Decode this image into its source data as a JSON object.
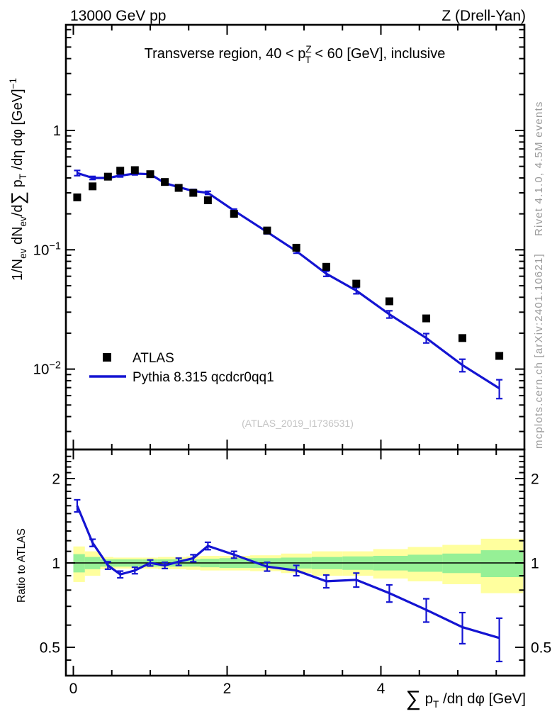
{
  "header": {
    "left": "13000 GeV pp",
    "right": "Z (Drell-Yan)"
  },
  "watermark": "(ATLAS_2019_I1736531)",
  "side_notes": {
    "top": "Rivet 4.1.0,  4.5M events",
    "bottom": "mcplots.cern.ch [arXiv:2401.10621]"
  },
  "colors": {
    "mc_blue": "#1414d2",
    "data_black": "#000000",
    "band_inner_green": "#96f096",
    "band_outer_yellow": "#ffff9e",
    "note_gray": "#9a9a9a",
    "watermark_gray": "#c4c4c4",
    "frame_black": "#000000"
  },
  "chart_data": [
    {
      "type": "scatter",
      "panel": "main",
      "title_parts": [
        [
          "Transverse region, 40 < p",
          0
        ],
        [
          "Z",
          -1
        ],
        [
          "T",
          3
        ],
        [
          " < 60 [GeV], inclusive",
          0
        ]
      ],
      "ylabel_plain": "1/N_ev dN_ev/d Sum p_T /deta dphi  [GeV]^-1",
      "ylabel_parts": [
        [
          "1/N",
          0
        ],
        [
          "ev",
          1
        ],
        [
          " dN",
          0
        ],
        [
          "ev",
          1
        ],
        [
          "/d",
          0
        ],
        [
          "∑",
          2
        ],
        [
          " p",
          0
        ],
        [
          "T",
          1
        ],
        [
          " /dη dφ  [GeV]",
          0
        ],
        [
          "−1",
          -1
        ]
      ],
      "yscale": "log",
      "xlim": [
        -0.1,
        5.87
      ],
      "ylim": [
        0.0021,
        7.7
      ],
      "yticks_labeled": [
        1,
        0.1,
        0.01
      ],
      "x": [
        0.05,
        0.25,
        0.45,
        0.61,
        0.8,
        1.0,
        1.19,
        1.37,
        1.56,
        1.75,
        2.09,
        2.52,
        2.9,
        3.29,
        3.68,
        4.11,
        4.59,
        5.06,
        5.54
      ],
      "series": [
        {
          "name": "ATLAS",
          "style": "squares",
          "color": "#000000",
          "values": [
            0.275,
            0.34,
            0.41,
            0.46,
            0.465,
            0.43,
            0.37,
            0.33,
            0.3,
            0.26,
            0.2,
            0.145,
            0.104,
            0.072,
            0.052,
            0.037,
            0.0266,
            0.0182,
            0.0129
          ]
        },
        {
          "name": "Pythia 8.315 qcdcr0qq1",
          "style": "line",
          "color": "#1414d2",
          "values": [
            0.44,
            0.4,
            0.4,
            0.418,
            0.435,
            0.43,
            0.362,
            0.335,
            0.311,
            0.3,
            0.213,
            0.141,
            0.0975,
            0.063,
            0.0455,
            0.0288,
            0.0182,
            0.0108,
            0.0069
          ],
          "yerr_frac": [
            0.05,
            0.03,
            0.025,
            0.025,
            0.025,
            0.025,
            0.025,
            0.03,
            0.03,
            0.03,
            0.03,
            0.035,
            0.04,
            0.05,
            0.06,
            0.07,
            0.09,
            0.12,
            0.18
          ]
        }
      ]
    },
    {
      "type": "line",
      "panel": "ratio",
      "ylabel": "Ratio to ATLAS",
      "xlabel_plain": "Sum p_T /deta dphi [GeV]",
      "xlabel_parts": [
        [
          "∑",
          2
        ],
        [
          " p",
          0
        ],
        [
          "T",
          1
        ],
        [
          " /dη dφ [GeV]",
          0
        ]
      ],
      "yscale": "log",
      "ylim": [
        0.396,
        2.54
      ],
      "yticks_labeled": [
        0.5,
        1,
        2
      ],
      "xticks_labeled": [
        0,
        2,
        4
      ],
      "xtick_minor_step": 0.5,
      "x": [
        0.05,
        0.25,
        0.45,
        0.61,
        0.8,
        1.0,
        1.19,
        1.37,
        1.56,
        1.75,
        2.09,
        2.52,
        2.9,
        3.29,
        3.68,
        4.11,
        4.59,
        5.06,
        5.54
      ],
      "ratio": [
        1.6,
        1.18,
        0.98,
        0.91,
        0.94,
        1.0,
        0.98,
        1.01,
        1.04,
        1.15,
        1.07,
        0.97,
        0.94,
        0.86,
        0.87,
        0.78,
        0.68,
        0.59,
        0.54
      ],
      "ratio_err": [
        0.08,
        0.035,
        0.03,
        0.025,
        0.025,
        0.025,
        0.025,
        0.03,
        0.03,
        0.035,
        0.03,
        0.035,
        0.04,
        0.045,
        0.05,
        0.055,
        0.065,
        0.075,
        0.095
      ],
      "bands": {
        "edges": [
          0,
          0.15,
          0.35,
          0.52,
          0.71,
          0.9,
          1.1,
          1.29,
          1.47,
          1.65,
          1.9,
          2.3,
          2.7,
          3.1,
          3.5,
          3.9,
          4.35,
          4.8,
          5.3,
          5.85
        ],
        "inner_half": [
          0.075,
          0.05,
          0.03,
          0.03,
          0.03,
          0.03,
          0.03,
          0.03,
          0.03,
          0.035,
          0.04,
          0.04,
          0.045,
          0.05,
          0.055,
          0.06,
          0.07,
          0.08,
          0.11
        ],
        "outer_half": [
          0.145,
          0.1,
          0.05,
          0.045,
          0.045,
          0.045,
          0.05,
          0.05,
          0.055,
          0.06,
          0.06,
          0.065,
          0.08,
          0.1,
          0.1,
          0.12,
          0.14,
          0.16,
          0.22
        ]
      }
    }
  ]
}
